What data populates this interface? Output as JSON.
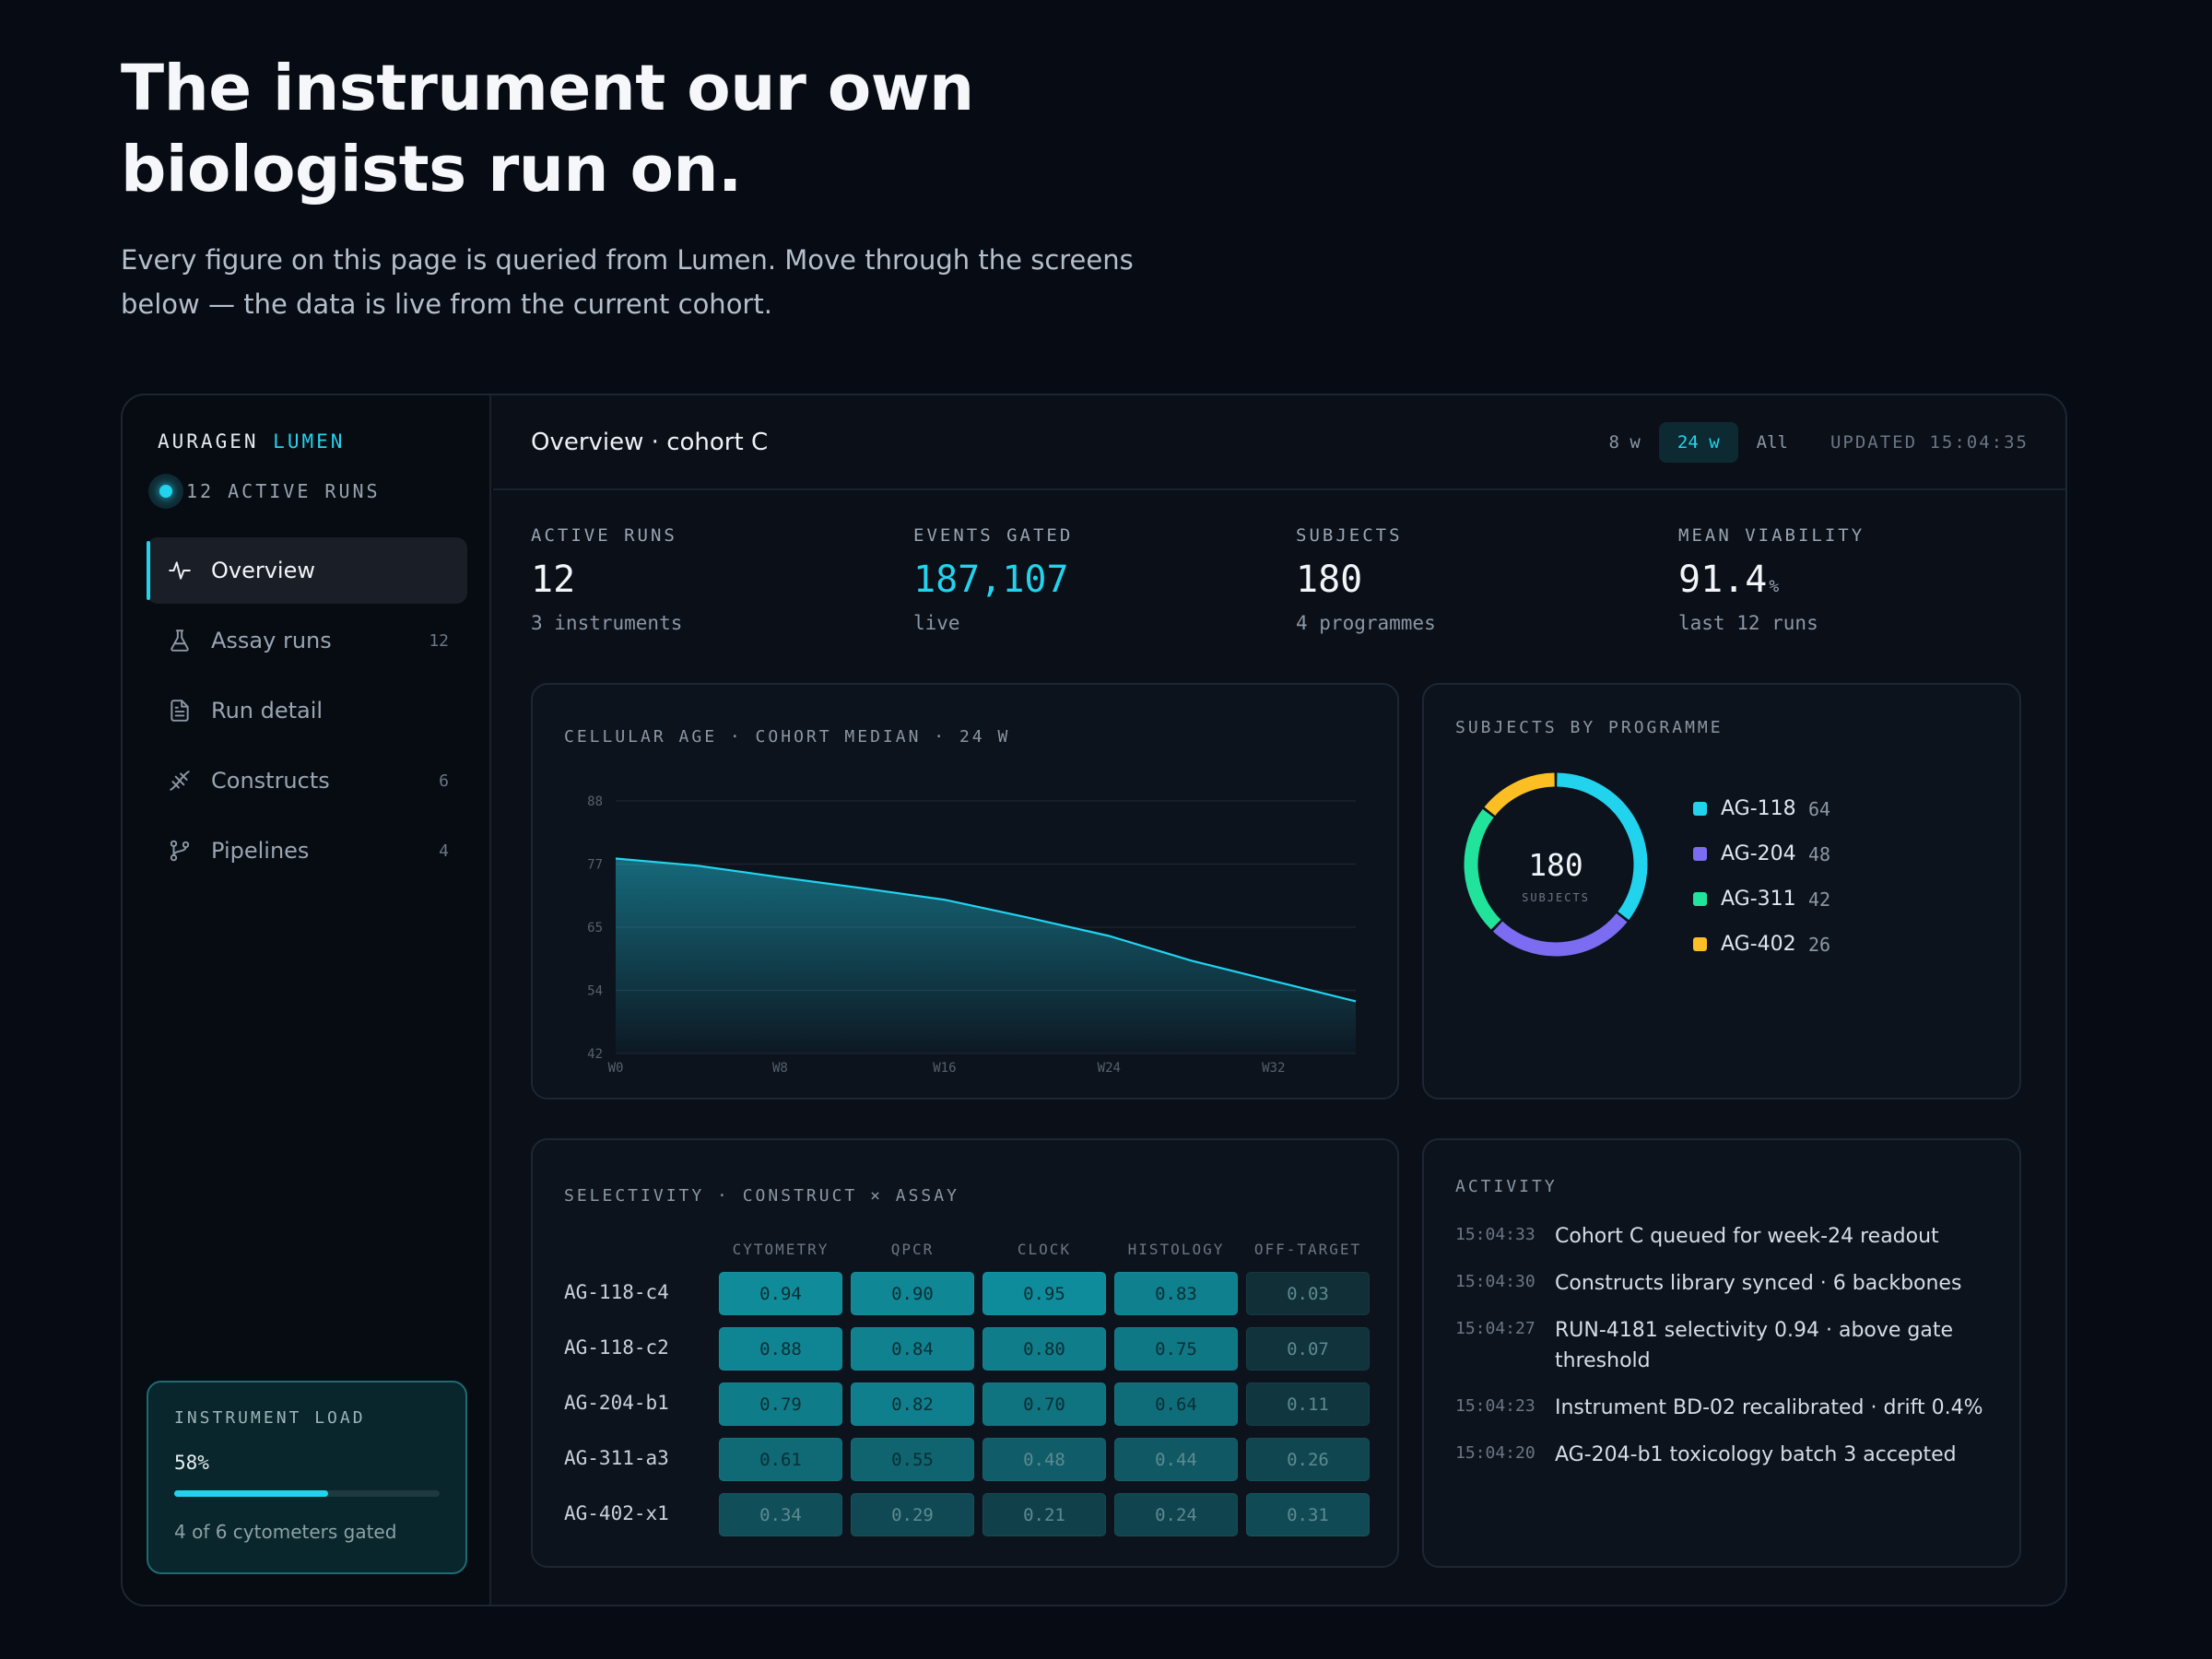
{
  "hero": {
    "title_line1": "The instrument our own",
    "title_line2": "biologists run on.",
    "subtitle_line1": "Every figure on this page is queried from Lumen. Move through the screens",
    "subtitle_line2": "below — the data is live from the current cohort."
  },
  "sidebar": {
    "brand_a": "AURAGEN",
    "brand_b": "LUMEN",
    "active_runs": "12 ACTIVE RUNS",
    "items": [
      {
        "label": "Overview",
        "count": "",
        "icon": "activity-icon"
      },
      {
        "label": "Assay runs",
        "count": "12",
        "icon": "flask-icon"
      },
      {
        "label": "Run detail",
        "count": "",
        "icon": "document-icon"
      },
      {
        "label": "Constructs",
        "count": "6",
        "icon": "dna-icon"
      },
      {
        "label": "Pipelines",
        "count": "4",
        "icon": "branch-icon"
      }
    ],
    "load": {
      "title": "INSTRUMENT LOAD",
      "value": "58%",
      "fraction": 0.58,
      "sub": "4 of 6 cytometers gated"
    }
  },
  "topbar": {
    "title": "Overview · cohort C",
    "ranges": [
      "8 w",
      "24 w",
      "All"
    ],
    "active_range": "24 w",
    "updated": "UPDATED 15:04:35"
  },
  "kpis": [
    {
      "label": "ACTIVE RUNS",
      "value": "12",
      "unit": "",
      "sub": "3 instruments"
    },
    {
      "label": "EVENTS GATED",
      "value": "187,107",
      "unit": "",
      "sub": "live"
    },
    {
      "label": "SUBJECTS",
      "value": "180",
      "unit": "",
      "sub": "4 programmes"
    },
    {
      "label": "MEAN VIABILITY",
      "value": "91.4",
      "unit": "%",
      "sub": "last 12 runs"
    }
  ],
  "colors": {
    "accent": "#22d3ee",
    "series": "#22d3ee",
    "programmes": [
      "#22d3ee",
      "#7c6cf2",
      "#22e39b",
      "#fbbf24"
    ]
  },
  "chart_data": [
    {
      "type": "area",
      "title": "CELLULAR AGE · COHORT MEDIAN · 24 W",
      "xlabel": "",
      "ylabel": "",
      "y_ticks": [
        "88",
        "77",
        "65",
        "54",
        "42"
      ],
      "x_ticks": [
        "W0",
        "W8",
        "W16",
        "W24",
        "W32"
      ],
      "ylim": [
        42,
        88
      ],
      "xlim": [
        0,
        36
      ],
      "grid": true,
      "series": [
        {
          "x": [
            0,
            4,
            8,
            12,
            16,
            20,
            24,
            28,
            32,
            36
          ],
          "values": [
            77.5,
            76.2,
            74.1,
            72.1,
            70.0,
            66.8,
            63.4,
            58.9,
            55.2,
            51.5
          ]
        }
      ]
    },
    {
      "type": "pie",
      "title": "SUBJECTS BY PROGRAMME",
      "center_value": "180",
      "center_label": "SUBJECTS",
      "categories": [
        "AG-118",
        "AG-204",
        "AG-311",
        "AG-402"
      ],
      "values": [
        64,
        48,
        42,
        26
      ]
    },
    {
      "type": "heatmap",
      "title": "SELECTIVITY · CONSTRUCT × ASSAY",
      "columns": [
        "CYTOMETRY",
        "QPCR",
        "CLOCK",
        "HISTOLOGY",
        "OFF-TARGET"
      ],
      "rows": [
        "AG-118-c4",
        "AG-118-c2",
        "AG-204-b1",
        "AG-311-a3",
        "AG-402-x1"
      ],
      "values": [
        [
          "0.94",
          "0.90",
          "0.95",
          "0.83",
          "0.03"
        ],
        [
          "0.88",
          "0.84",
          "0.80",
          "0.75",
          "0.07"
        ],
        [
          "0.79",
          "0.82",
          "0.70",
          "0.64",
          "0.11"
        ],
        [
          "0.61",
          "0.55",
          "0.48",
          "0.44",
          "0.26"
        ],
        [
          "0.34",
          "0.29",
          "0.21",
          "0.24",
          "0.31"
        ]
      ]
    }
  ],
  "activity": {
    "title": "ACTIVITY",
    "items": [
      {
        "time": "15:04:33",
        "text": "Cohort C queued for week-24 readout"
      },
      {
        "time": "15:04:30",
        "text": "Constructs library synced · 6 backbones"
      },
      {
        "time": "15:04:27",
        "text": "RUN-4181 selectivity 0.94 · above gate threshold"
      },
      {
        "time": "15:04:23",
        "text": "Instrument BD-02 recalibrated · drift 0.4%"
      },
      {
        "time": "15:04:20",
        "text": "AG-204-b1 toxicology batch 3 accepted"
      }
    ]
  }
}
